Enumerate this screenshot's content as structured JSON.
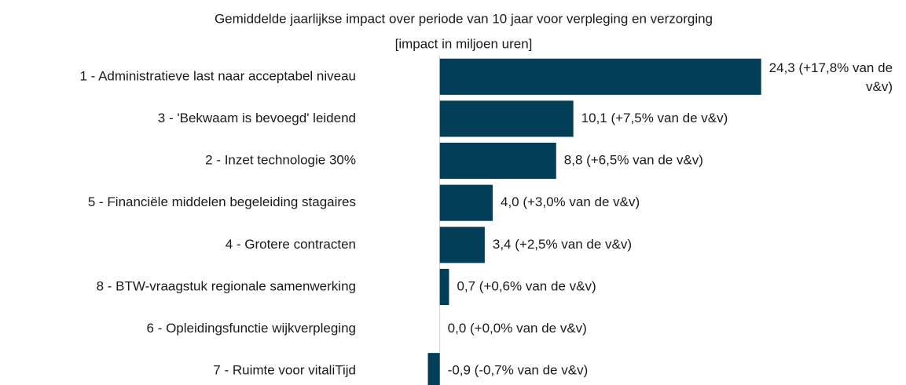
{
  "chart_data": {
    "type": "barh",
    "title": "Gemiddelde jaarlijkse impact over periode van 10 jaar voor verpleging en verzorging",
    "subtitle": "[impact in miljoen uren]",
    "categories": [
      "1 - Administratieve last naar acceptabel niveau",
      "3 - 'Bekwaam is bevoegd' leidend",
      "2 - Inzet technologie 30%",
      "5 - Financiële middelen begeleiding stagaires",
      "4 - Grotere contracten",
      "8 - BTW-vraagstuk regionale samenwerking",
      "6 - Opleidingsfunctie wijkverpleging",
      "7 - Ruimte voor vitaliTijd"
    ],
    "values": [
      24.3,
      10.1,
      8.8,
      4.0,
      3.4,
      0.7,
      0.0,
      -0.9
    ],
    "value_labels": [
      "24,3 (+17,8% van de v&v)",
      "10,1 (+7,5% van de v&v)",
      "8,8 (+6,5% van de v&v)",
      "4,0 (+3,0% van de v&v)",
      "3,4 (+2,5% van de v&v)",
      "0,7 (+0,6% van de v&v)",
      "0,0 (+0,0% van de v&v)",
      "-0,9 (-0,7% van de v&v)"
    ],
    "color": "#023e58",
    "xlim": [
      -2,
      30
    ]
  }
}
